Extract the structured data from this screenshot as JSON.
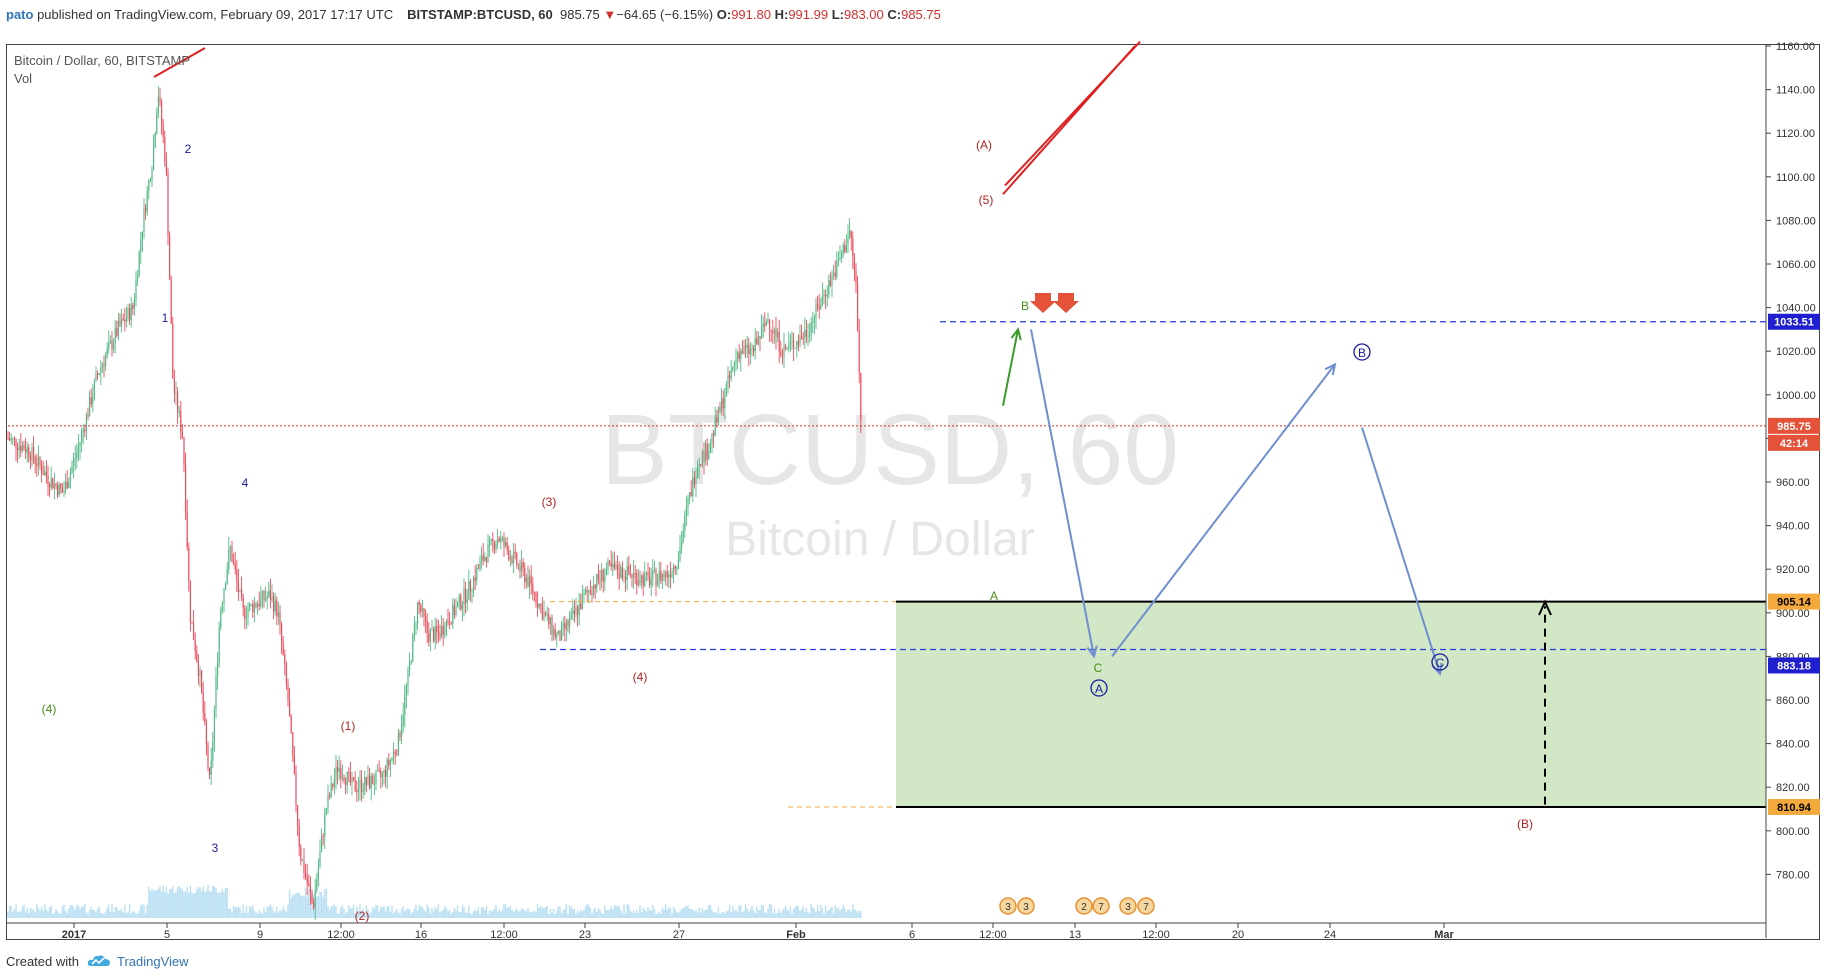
{
  "header": {
    "user": "pato",
    "published": "published on TradingView.com, February 09, 2017 17:17 UTC",
    "symbol": "BITSTAMP:BTCUSD, 60",
    "last": "985.75",
    "change_icon": "triangle-down-icon",
    "change": "−64.65 (−6.15%)",
    "o_label": "O:",
    "o_val": "991.80",
    "h_label": "H:",
    "h_val": "991.99",
    "l_label": "L:",
    "l_val": "983.00",
    "c_label": "C:",
    "c_val": "985.75"
  },
  "legend": {
    "title": "Bitcoin / Dollar, 60, BITSTAMP",
    "vol": "Vol"
  },
  "watermark": {
    "symbol": "BTCUSD, 60",
    "name": "Bitcoin / Dollar"
  },
  "footer": {
    "created": "Created with",
    "brand": "TradingView",
    "brand_icon": "tradingview-cloud-icon"
  },
  "colors": {
    "up": "#53b987",
    "down": "#eb4d5c",
    "zone": "#d1e7c6",
    "dash_blue": "#2a39d9",
    "arrow": "#6f8fd0",
    "wave_red": "#b02222",
    "wave_blue": "#1c1c9c",
    "wave_green": "#4a8c1c",
    "badge_blue": "#1f1fcf",
    "badge_red": "#e5523a",
    "badge_black": "#111111",
    "badge_orange": "#f3a93b"
  },
  "chart_data": {
    "type": "candlestick",
    "symbol": "BTCUSD",
    "interval": "60",
    "exchange": "BITSTAMP",
    "ylim": [
      760,
      1160
    ],
    "y_ticks": [
      1160,
      1140,
      1120,
      1100,
      1080,
      1060,
      1040,
      1020,
      1000,
      980,
      960,
      940,
      920,
      900,
      880,
      860,
      840,
      820,
      800,
      780
    ],
    "x_ticks": [
      "2017",
      "5",
      "9",
      "12:00",
      "16",
      "12:00",
      "23",
      "27",
      "Feb",
      "6",
      "12:00",
      "13",
      "12:00",
      "20",
      "24",
      "Mar"
    ],
    "price_path": [
      [
        0,
        980
      ],
      [
        20,
        975
      ],
      [
        40,
        962
      ],
      [
        55,
        955
      ],
      [
        70,
        975
      ],
      [
        90,
        1010
      ],
      [
        110,
        1030
      ],
      [
        125,
        1040
      ],
      [
        135,
        1080
      ],
      [
        145,
        1110
      ],
      [
        150,
        1140
      ],
      [
        158,
        1105
      ],
      [
        165,
        1005
      ],
      [
        175,
        980
      ],
      [
        182,
        900
      ],
      [
        192,
        870
      ],
      [
        202,
        820
      ],
      [
        212,
        900
      ],
      [
        222,
        930
      ],
      [
        235,
        900
      ],
      [
        250,
        905
      ],
      [
        262,
        908
      ],
      [
        270,
        900
      ],
      [
        280,
        860
      ],
      [
        292,
        790
      ],
      [
        305,
        765
      ],
      [
        318,
        810
      ],
      [
        330,
        830
      ],
      [
        345,
        820
      ],
      [
        360,
        822
      ],
      [
        375,
        825
      ],
      [
        390,
        840
      ],
      [
        400,
        870
      ],
      [
        410,
        905
      ],
      [
        420,
        890
      ],
      [
        430,
        890
      ],
      [
        445,
        900
      ],
      [
        460,
        910
      ],
      [
        475,
        925
      ],
      [
        490,
        935
      ],
      [
        505,
        925
      ],
      [
        520,
        915
      ],
      [
        535,
        900
      ],
      [
        550,
        888
      ],
      [
        565,
        898
      ],
      [
        580,
        910
      ],
      [
        600,
        920
      ],
      [
        620,
        918
      ],
      [
        640,
        915
      ],
      [
        660,
        918
      ],
      [
        670,
        925
      ],
      [
        680,
        950
      ],
      [
        690,
        970
      ],
      [
        700,
        975
      ],
      [
        710,
        990
      ],
      [
        720,
        1005
      ],
      [
        730,
        1020
      ],
      [
        745,
        1020
      ],
      [
        760,
        1035
      ],
      [
        775,
        1020
      ],
      [
        790,
        1025
      ],
      [
        800,
        1030
      ],
      [
        810,
        1040
      ],
      [
        820,
        1050
      ],
      [
        830,
        1060
      ],
      [
        842,
        1075
      ],
      [
        848,
        1050
      ],
      [
        853,
        985
      ]
    ],
    "levels": [
      {
        "label": "1033.51",
        "style": "dashed-blue",
        "badge": "blue"
      },
      {
        "label": "985.75",
        "style": "dotted-red",
        "badge": "red"
      },
      {
        "label": "42:14",
        "style": "none",
        "badge": "red"
      },
      {
        "label": "905.14",
        "style": "solid-black",
        "badge": "orange"
      },
      {
        "label": "883.18",
        "style": "dashed-blue",
        "badge": "blue"
      },
      {
        "label": "810.94",
        "style": "solid-black",
        "badge": "orange"
      }
    ],
    "zone": {
      "from": 810.94,
      "to": 905.14
    },
    "wave_labels": [
      {
        "text": "(4)",
        "color": "green"
      },
      {
        "text": "2",
        "color": "blue"
      },
      {
        "text": "1",
        "color": "blue"
      },
      {
        "text": "4",
        "color": "blue"
      },
      {
        "text": "3",
        "color": "blue"
      },
      {
        "text": "(1)",
        "color": "red"
      },
      {
        "text": "(2)",
        "color": "red"
      },
      {
        "text": "(3)",
        "color": "red"
      },
      {
        "text": "(4)",
        "color": "red"
      },
      {
        "text": "(5)",
        "color": "red"
      },
      {
        "text": "(A)",
        "color": "red"
      },
      {
        "text": "(B)",
        "color": "red"
      },
      {
        "text": "A",
        "color": "green"
      },
      {
        "text": "B",
        "color": "green"
      },
      {
        "text": "C",
        "color": "green"
      },
      {
        "text": "A",
        "color": "blue",
        "circled": true
      },
      {
        "text": "B",
        "color": "blue",
        "circled": true
      },
      {
        "text": "C",
        "color": "blue",
        "circled": true
      }
    ],
    "event_markers": [
      "3",
      "3",
      "2",
      "7",
      "3",
      "7"
    ]
  }
}
